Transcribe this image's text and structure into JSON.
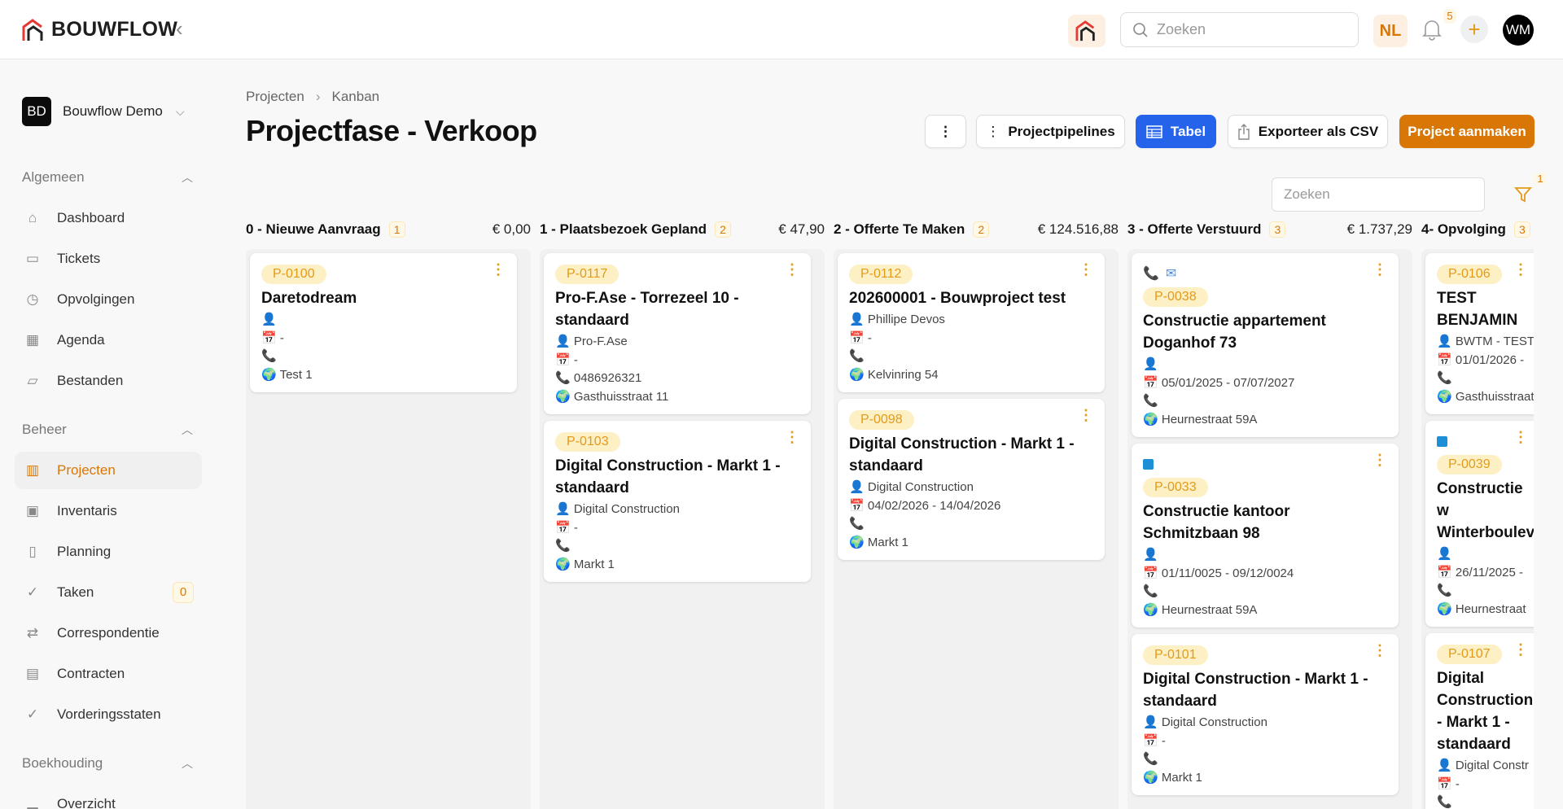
{
  "header": {
    "brand": "BOUWFLOW",
    "search_placeholder": "Zoeken",
    "language": "NL",
    "notifications": "5",
    "user_initials": "WM"
  },
  "sidebar": {
    "org_initials": "BD",
    "org_name": "Bouwflow Demo",
    "sections": [
      {
        "title": "Algemeen",
        "items": [
          {
            "label": "Dashboard",
            "icon": "home-icon"
          },
          {
            "label": "Tickets",
            "icon": "ticket-icon"
          },
          {
            "label": "Opvolgingen",
            "icon": "clock-icon"
          },
          {
            "label": "Agenda",
            "icon": "calendar-icon"
          },
          {
            "label": "Bestanden",
            "icon": "folder-icon"
          }
        ]
      },
      {
        "title": "Beheer",
        "items": [
          {
            "label": "Projecten",
            "icon": "building-icon",
            "active": true
          },
          {
            "label": "Inventaris",
            "icon": "archive-icon"
          },
          {
            "label": "Planning",
            "icon": "layout-icon"
          },
          {
            "label": "Taken",
            "icon": "check-circle-icon",
            "count": "0"
          },
          {
            "label": "Correspondentie",
            "icon": "arrows-icon"
          },
          {
            "label": "Contracten",
            "icon": "document-icon"
          },
          {
            "label": "Vorderingsstaten",
            "icon": "check-circle-icon"
          }
        ]
      },
      {
        "title": "Boekhouding",
        "items": [
          {
            "label": "Overzicht",
            "icon": "bar-chart-icon"
          }
        ]
      }
    ]
  },
  "breadcrumb": [
    "Projecten",
    "Kanban"
  ],
  "page_title": "Projectfase - Verkoop",
  "toolbar": {
    "pipelines": "Projectpipelines",
    "table": "Tabel",
    "export": "Exporteer als CSV",
    "create": "Project aanmaken"
  },
  "board": {
    "search_placeholder": "Zoeken",
    "filter_count": "1"
  },
  "colors": {
    "accent": "#d97706",
    "primary": "#2563eb"
  },
  "columns": [
    {
      "name": "0 - Nieuwe Aanvraag",
      "count": "1",
      "total": "€ 0,00",
      "cards": [
        {
          "id": "P-0100",
          "title": "Daretodream",
          "person": "",
          "date": "-",
          "phone": "",
          "address": "Test 1"
        }
      ]
    },
    {
      "name": "1 - Plaatsbezoek Gepland",
      "count": "2",
      "total": "€ 47,90",
      "cards": [
        {
          "id": "P-0117",
          "title": "Pro-F.Ase - Torrezeel 10 - standaard",
          "person": "Pro-F.Ase",
          "date": "-",
          "phone": "0486926321",
          "address": "Gasthuisstraat 11"
        },
        {
          "id": "P-0103",
          "title": "Digital Construction - Markt 1 - standaard",
          "person": "Digital Construction",
          "date": "-",
          "phone": "",
          "address": "Markt 1"
        }
      ]
    },
    {
      "name": "2 - Offerte Te Maken",
      "count": "2",
      "total": "€ 124.516,88",
      "cards": [
        {
          "id": "P-0112",
          "title": "202600001 - Bouwproject test",
          "person": "Phillipe Devos",
          "date": "-",
          "phone": "",
          "address": "Kelvinring 54"
        },
        {
          "id": "P-0098",
          "title": "Digital Construction - Markt 1 - standaard",
          "person": "Digital Construction",
          "date": "04/02/2026 - 14/04/2026",
          "phone": "",
          "address": "Markt 1"
        }
      ]
    },
    {
      "name": "3 - Offerte Verstuurd",
      "count": "3",
      "total": "€ 1.737,29",
      "cards": [
        {
          "id": "P-0038",
          "flags": [
            "missed-call-icon",
            "mail-icon"
          ],
          "title": "Constructie appartement Doganhof 73",
          "person": "",
          "date": "05/01/2025 - 07/07/2027",
          "phone": "",
          "address": "Heurnestraat 59A"
        },
        {
          "id": "P-0033",
          "flags": [
            "blue-square-icon"
          ],
          "title": "Constructie kantoor Schmitzbaan 98",
          "person": "",
          "date": "01/11/0025 - 09/12/0024",
          "phone": "",
          "address": "Heurnestraat 59A"
        },
        {
          "id": "P-0101",
          "title": "Digital Construction - Markt 1 - standaard",
          "person": "Digital Construction",
          "date": "-",
          "phone": "",
          "address": "Markt 1"
        }
      ]
    },
    {
      "name": "4- Opvolging",
      "count": "3",
      "total": "",
      "cards": [
        {
          "id": "P-0106",
          "title": "TEST BENJAMIN",
          "person": "BWTM - TEST",
          "date": "01/01/2026 -",
          "phone": "",
          "address": "Gasthuisstraat"
        },
        {
          "id": "P-0039",
          "flags": [
            "blue-square-icon"
          ],
          "title": "Constructie w Winterboulevard",
          "person": "",
          "date": "26/11/2025 -",
          "phone": "",
          "address": "Heurnestraat"
        },
        {
          "id": "P-0107",
          "title": "Digital Construction - Markt 1 - standaard",
          "person": "Digital Constr",
          "date": "-",
          "phone": "",
          "address": "Markt 1"
        }
      ]
    }
  ]
}
